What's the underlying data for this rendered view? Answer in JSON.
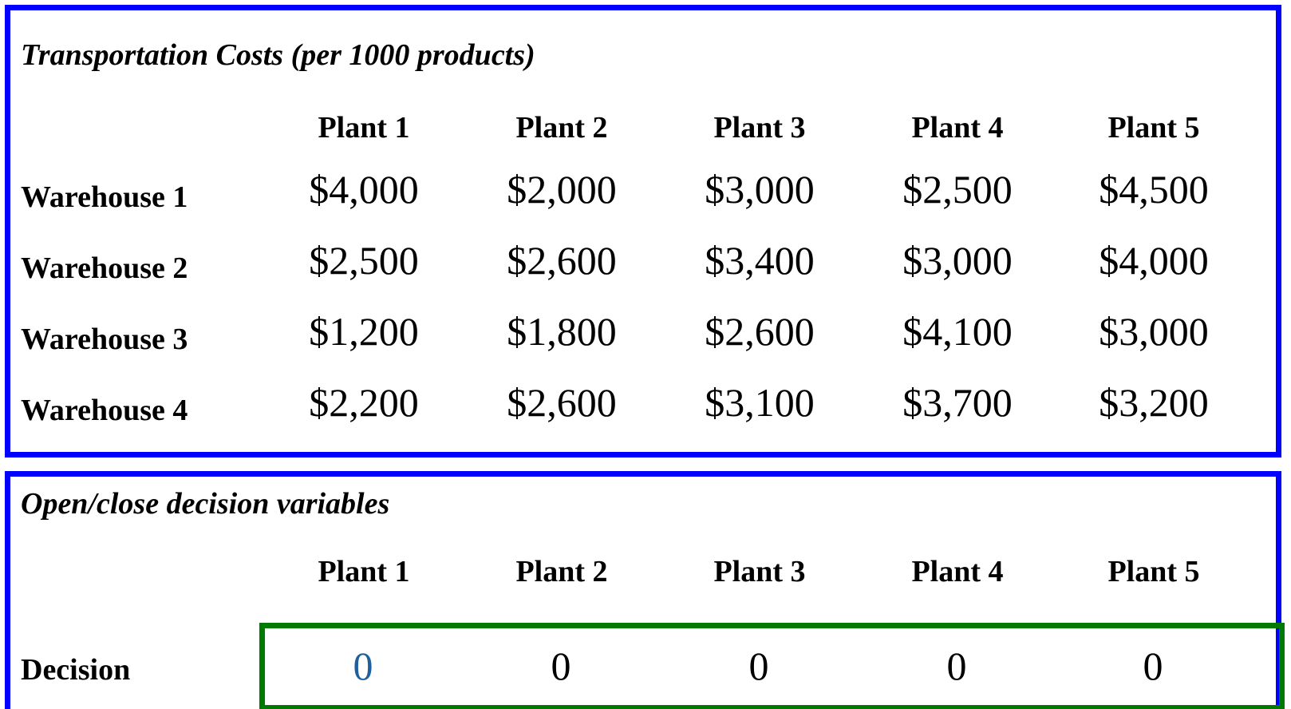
{
  "costs": {
    "title": "Transportation Costs (per 1000 products)",
    "columns": [
      "Plant 1",
      "Plant 2",
      "Plant 3",
      "Plant 4",
      "Plant 5"
    ],
    "rows": [
      {
        "label": "Warehouse 1",
        "values": [
          "$4,000",
          "$2,000",
          "$3,000",
          "$2,500",
          "$4,500"
        ]
      },
      {
        "label": "Warehouse 2",
        "values": [
          "$2,500",
          "$2,600",
          "$3,400",
          "$3,000",
          "$4,000"
        ]
      },
      {
        "label": "Warehouse 3",
        "values": [
          "$1,200",
          "$1,800",
          "$2,600",
          "$4,100",
          "$3,000"
        ]
      },
      {
        "label": "Warehouse 4",
        "values": [
          "$2,200",
          "$2,600",
          "$3,100",
          "$3,700",
          "$3,200"
        ]
      }
    ]
  },
  "decision": {
    "title": "Open/close decision variables",
    "columns": [
      "Plant 1",
      "Plant 2",
      "Plant 3",
      "Plant 4",
      "Plant 5"
    ],
    "row_label": "Decision",
    "values": [
      "0",
      "0",
      "0",
      "0",
      "0"
    ]
  },
  "colors": {
    "panel_border": "#0000ff",
    "decision_border": "#007a00",
    "selected_value": "#1f5f9e",
    "text": "#000000"
  }
}
